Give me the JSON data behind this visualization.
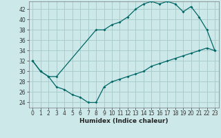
{
  "xlabel": "Humidex (Indice chaleur)",
  "ylabel": "",
  "bg_color": "#cce8e8",
  "grid_color": "#aacccc",
  "line_color": "#006666",
  "xlim": [
    -0.5,
    23.5
  ],
  "ylim": [
    23,
    43.5
  ],
  "xticks": [
    0,
    1,
    2,
    3,
    4,
    5,
    6,
    7,
    8,
    9,
    10,
    11,
    12,
    13,
    14,
    15,
    16,
    17,
    18,
    19,
    20,
    21,
    22,
    23
  ],
  "yticks": [
    24,
    26,
    28,
    30,
    32,
    34,
    36,
    38,
    40,
    42
  ],
  "upper_curve": {
    "x": [
      0,
      1,
      2,
      3,
      8,
      9,
      10,
      11,
      12,
      13,
      14,
      15,
      16,
      17,
      18,
      19,
      20,
      21,
      22,
      23
    ],
    "y": [
      32,
      30,
      29,
      29,
      38,
      38,
      39,
      39.5,
      40.5,
      42,
      43,
      43.5,
      43,
      43.5,
      43,
      41.5,
      42.5,
      40.5,
      38,
      34
    ]
  },
  "lower_curve": {
    "x": [
      0,
      1,
      2,
      3,
      4,
      5,
      6,
      7,
      8,
      9,
      10,
      11,
      12,
      13,
      14,
      15,
      16,
      17,
      18,
      19,
      20,
      21,
      22,
      23
    ],
    "y": [
      32,
      30,
      29,
      27,
      26.5,
      25.5,
      25,
      24,
      24,
      27,
      28,
      28.5,
      29,
      29.5,
      30,
      31,
      31.5,
      32,
      32.5,
      33,
      33.5,
      34,
      34.5,
      34
    ]
  },
  "tick_fontsize": 5.5,
  "xlabel_fontsize": 6.5
}
